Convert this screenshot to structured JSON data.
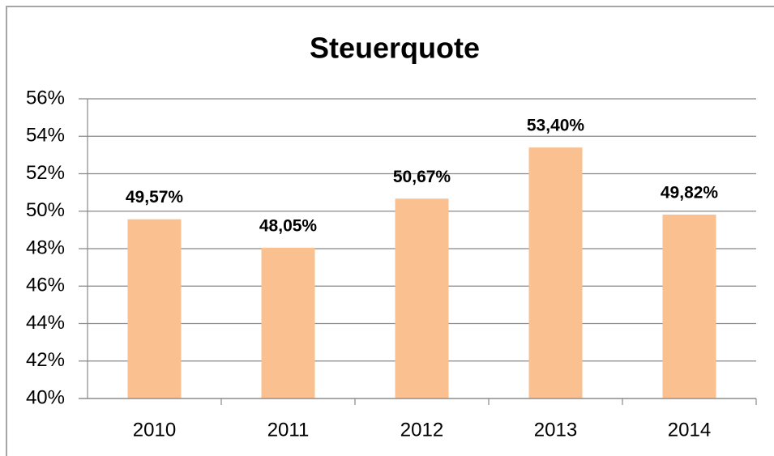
{
  "chart_data": {
    "type": "bar",
    "title": "Steuerquote",
    "categories": [
      "2010",
      "2011",
      "2012",
      "2013",
      "2014"
    ],
    "values": [
      49.57,
      48.05,
      50.67,
      53.4,
      49.82
    ],
    "value_labels": [
      "49,57%",
      "48,05%",
      "50,67%",
      "53,40%",
      "49,82%"
    ],
    "color": "#fac090",
    "ylim": [
      40,
      56
    ],
    "yticks": [
      {
        "value": 40,
        "label": "40%"
      },
      {
        "value": 42,
        "label": "42%"
      },
      {
        "value": 44,
        "label": "44%"
      },
      {
        "value": 46,
        "label": "46%"
      },
      {
        "value": 48,
        "label": "48%"
      },
      {
        "value": 50,
        "label": "50%"
      },
      {
        "value": 52,
        "label": "52%"
      },
      {
        "value": 54,
        "label": "54%"
      },
      {
        "value": 56,
        "label": "56%"
      }
    ],
    "grid": true
  }
}
